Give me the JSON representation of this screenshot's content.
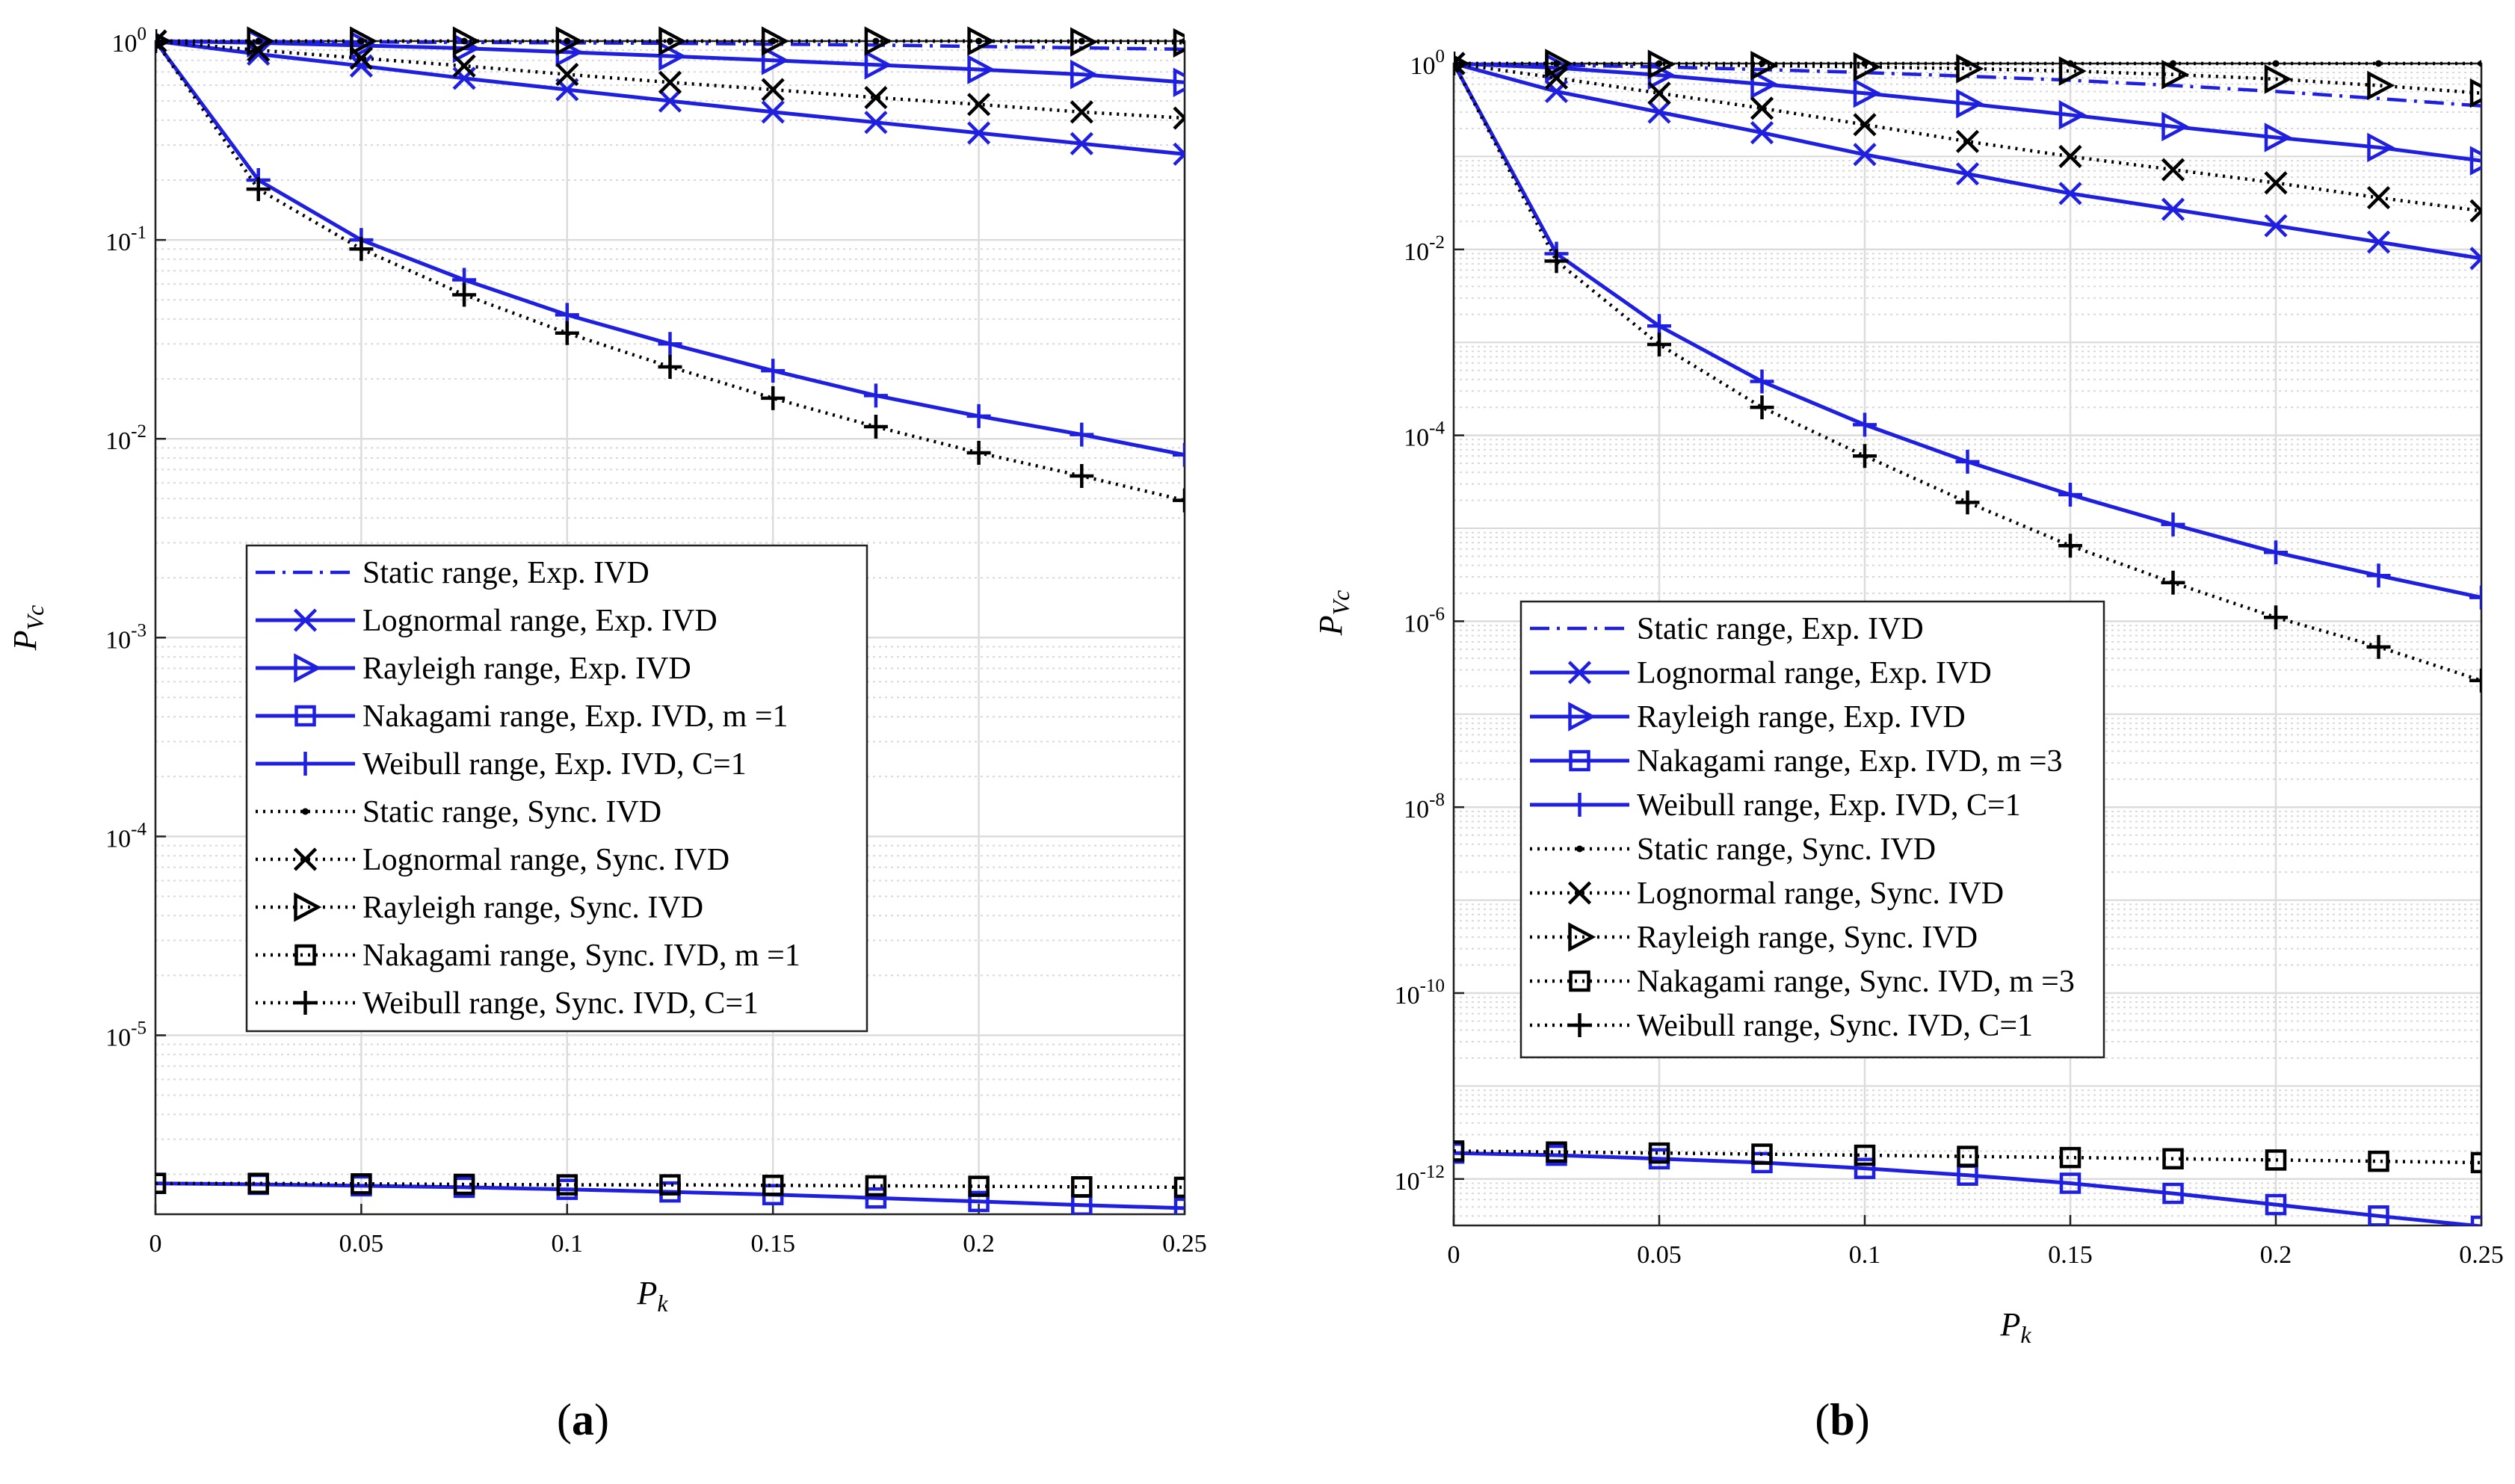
{
  "chart_data": [
    {
      "type": "line",
      "panel": "a",
      "caption_letter": "a",
      "xlabel": "P_k",
      "ylabel": "P_Vc",
      "xlim": [
        0,
        0.25
      ],
      "ylim_exp": [
        -5.9,
        0
      ],
      "x": [
        0,
        0.025,
        0.05,
        0.075,
        0.1,
        0.125,
        0.15,
        0.175,
        0.2,
        0.225,
        0.25
      ],
      "x_ticks": [
        "0",
        "0.05",
        "0.1",
        "0.15",
        "0.2",
        "0.25"
      ],
      "y_tick_exponents": [
        0,
        -1,
        -2,
        -3,
        -4,
        -5
      ],
      "series": [
        {
          "name": "Static range, Exp. IVD",
          "style": "dashdot",
          "color": "#1f1fe0",
          "marker": "none",
          "values": [
            1,
            0.995,
            0.99,
            0.985,
            0.98,
            0.975,
            0.965,
            0.955,
            0.94,
            0.925,
            0.91
          ]
        },
        {
          "name": "Lognormal range, Exp. IVD",
          "style": "solid",
          "color": "#1f1fe0",
          "marker": "x",
          "values": [
            1,
            0.86,
            0.75,
            0.65,
            0.57,
            0.5,
            0.44,
            0.39,
            0.345,
            0.305,
            0.27
          ]
        },
        {
          "name": "Rayleigh range, Exp. IVD",
          "style": "solid",
          "color": "#1f1fe0",
          "marker": "tri",
          "values": [
            1,
            0.98,
            0.95,
            0.92,
            0.88,
            0.84,
            0.8,
            0.76,
            0.72,
            0.68,
            0.62
          ]
        },
        {
          "name": "Nakagami range, Exp. IVD, m =1",
          "style": "solid",
          "color": "#1f1fe0",
          "marker": "sq",
          "values": [
            1.8e-06,
            1.78e-06,
            1.75e-06,
            1.72e-06,
            1.68e-06,
            1.63e-06,
            1.58e-06,
            1.52e-06,
            1.46e-06,
            1.4e-06,
            1.35e-06
          ]
        },
        {
          "name": "Weibull range, Exp. IVD, C=1",
          "style": "solid",
          "color": "#1f1fe0",
          "marker": "plus",
          "values": [
            1,
            0.2,
            0.1,
            0.063,
            0.042,
            0.03,
            0.022,
            0.0165,
            0.013,
            0.0105,
            0.0083
          ]
        },
        {
          "name": "Static range, Sync. IVD",
          "style": "dotted",
          "color": "#000000",
          "marker": "dot",
          "values": [
            1,
            1,
            1,
            1,
            1,
            1,
            1,
            1,
            1,
            1,
            1
          ]
        },
        {
          "name": "Lognormal range, Sync. IVD",
          "style": "dotted",
          "color": "#000000",
          "marker": "x",
          "values": [
            1,
            0.9,
            0.82,
            0.75,
            0.68,
            0.62,
            0.57,
            0.52,
            0.48,
            0.44,
            0.41
          ]
        },
        {
          "name": "Rayleigh range, Sync. IVD",
          "style": "dotted",
          "color": "#000000",
          "marker": "tri",
          "values": [
            1,
            1,
            1,
            1,
            1,
            1,
            1,
            1,
            1,
            0.99,
            0.98
          ]
        },
        {
          "name": "Nakagami range, Sync. IVD, m =1",
          "style": "dotted",
          "color": "#000000",
          "marker": "sq",
          "values": [
            1.8e-06,
            1.8e-06,
            1.79e-06,
            1.78e-06,
            1.77e-06,
            1.77e-06,
            1.76e-06,
            1.75e-06,
            1.74e-06,
            1.73e-06,
            1.72e-06
          ]
        },
        {
          "name": "Weibull range, Sync. IVD, C=1",
          "style": "dotted",
          "color": "#000000",
          "marker": "plus",
          "values": [
            1,
            0.18,
            0.09,
            0.053,
            0.034,
            0.023,
            0.016,
            0.0115,
            0.0085,
            0.0065,
            0.0049
          ]
        }
      ]
    },
    {
      "type": "line",
      "panel": "b",
      "caption_letter": "b",
      "xlabel": "P_k",
      "ylabel": "P_Vc",
      "xlim": [
        0,
        0.25
      ],
      "ylim_exp": [
        -12.5,
        0
      ],
      "x": [
        0,
        0.025,
        0.05,
        0.075,
        0.1,
        0.125,
        0.15,
        0.175,
        0.2,
        0.225,
        0.25
      ],
      "x_ticks": [
        "0",
        "0.05",
        "0.1",
        "0.15",
        "0.2",
        "0.25"
      ],
      "y_tick_exponents": [
        0,
        -2,
        -4,
        -6,
        -8,
        -10,
        -12
      ],
      "series": [
        {
          "name": "Static range, Exp. IVD",
          "style": "dashdot",
          "color": "#1f1fe0",
          "marker": "none",
          "values": [
            1,
            0.96,
            0.92,
            0.86,
            0.8,
            0.73,
            0.66,
            0.58,
            0.5,
            0.42,
            0.35
          ]
        },
        {
          "name": "Lognormal range, Exp. IVD",
          "style": "solid",
          "color": "#1f1fe0",
          "marker": "x",
          "values": [
            1,
            0.5,
            0.3,
            0.18,
            0.105,
            0.065,
            0.04,
            0.027,
            0.018,
            0.012,
            0.008
          ]
        },
        {
          "name": "Rayleigh range, Exp. IVD",
          "style": "solid",
          "color": "#1f1fe0",
          "marker": "tri",
          "values": [
            1,
            0.9,
            0.75,
            0.6,
            0.48,
            0.37,
            0.28,
            0.21,
            0.16,
            0.125,
            0.09
          ]
        },
        {
          "name": "Nakagami range, Exp. IVD, m =3",
          "style": "solid",
          "color": "#1f1fe0",
          "marker": "sq",
          "values": [
            1.9e-12,
            1.8e-12,
            1.65e-12,
            1.5e-12,
            1.3e-12,
            1.1e-12,
            9e-13,
            7e-13,
            5.3e-13,
            4e-13,
            3.1e-13
          ]
        },
        {
          "name": "Weibull range, Exp. IVD, C=1",
          "style": "solid",
          "color": "#1f1fe0",
          "marker": "plus",
          "values": [
            1,
            0.009,
            0.0015,
            0.00038,
            0.00013,
            5.2e-05,
            2.3e-05,
            1.1e-05,
            5.5e-06,
            3.1e-06,
            1.8e-06
          ]
        },
        {
          "name": "Static range, Sync. IVD",
          "style": "dotted",
          "color": "#000000",
          "marker": "dot",
          "values": [
            1,
            1,
            1,
            1,
            1,
            1,
            1,
            1,
            1,
            1,
            1
          ]
        },
        {
          "name": "Lognormal range, Sync. IVD",
          "style": "dotted",
          "color": "#000000",
          "marker": "x",
          "values": [
            1,
            0.7,
            0.48,
            0.33,
            0.22,
            0.145,
            0.1,
            0.072,
            0.052,
            0.036,
            0.026
          ]
        },
        {
          "name": "Rayleigh range, Sync. IVD",
          "style": "dotted",
          "color": "#000000",
          "marker": "tri",
          "values": [
            1,
            1,
            0.98,
            0.95,
            0.92,
            0.88,
            0.83,
            0.76,
            0.68,
            0.58,
            0.48
          ]
        },
        {
          "name": "Nakagami range, Sync. IVD, m =3",
          "style": "dotted",
          "color": "#000000",
          "marker": "sq",
          "values": [
            2e-12,
            1.95e-12,
            1.9e-12,
            1.85e-12,
            1.8e-12,
            1.75e-12,
            1.7e-12,
            1.65e-12,
            1.6e-12,
            1.55e-12,
            1.5e-12
          ]
        },
        {
          "name": "Weibull range, Sync. IVD, C=1",
          "style": "dotted",
          "color": "#000000",
          "marker": "plus",
          "values": [
            1,
            0.0075,
            0.00095,
            0.0002,
            6e-05,
            1.9e-05,
            6.5e-06,
            2.6e-06,
            1.1e-06,
            5.3e-07,
            2.3e-07
          ]
        }
      ]
    }
  ]
}
